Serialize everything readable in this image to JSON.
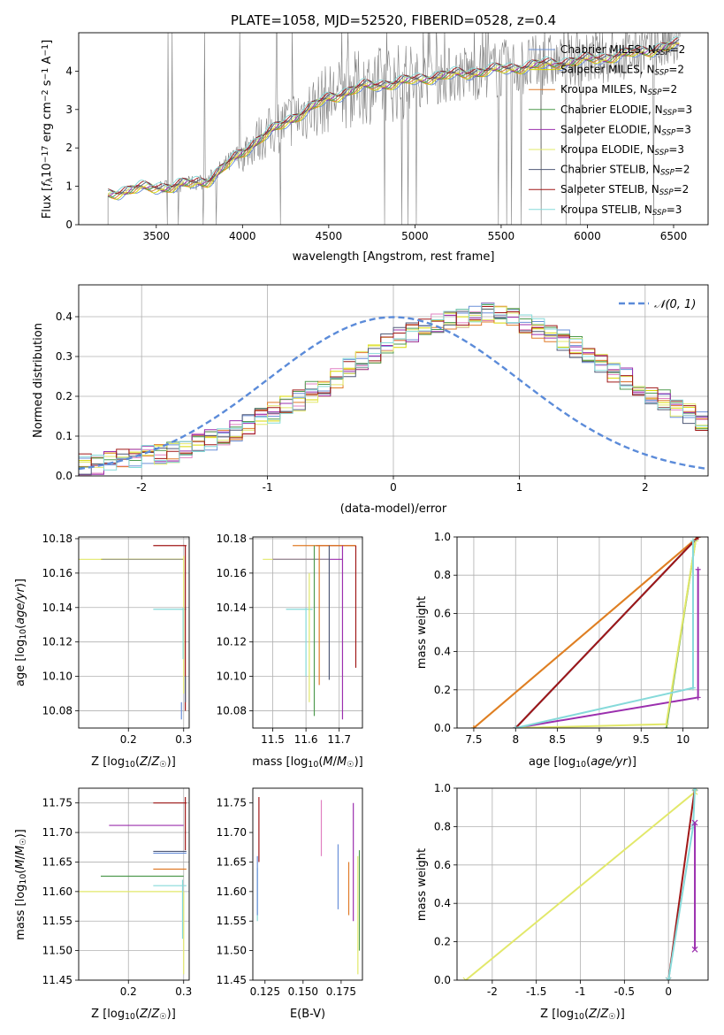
{
  "figure": {
    "title": "PLATE=1058, MJD=52520, FIBERID=0528, z=0.4"
  },
  "colors": {
    "Chabrier MILES": "#6a8fd8",
    "Salpeter MILES": "#d9d900",
    "Kroupa MILES": "#e07b28",
    "Chabrier ELODIE": "#4f9a4f",
    "Salpeter ELODIE": "#9b2fae",
    "Kroupa ELODIE": "#e2e86a",
    "Chabrier STELIB": "#505a78",
    "Salpeter STELIB": "#a01818",
    "Kroupa STELIB": "#86dada",
    "pink": "#e080c0",
    "spectrum": "#808080",
    "normal": "#5b8bd9"
  },
  "chart_data": [
    {
      "id": "spectrum",
      "type": "line",
      "title": "PLATE=1058, MJD=52520, FIBERID=0528, z=0.4",
      "xlabel": "wavelength [Angstrom, rest frame]",
      "ylabel_parts": [
        "Flux [",
        "f",
        "λ",
        "10",
        "−17",
        " erg cm",
        "−2",
        " s",
        "−1",
        " A",
        "−1",
        "]"
      ],
      "xlim": [
        3050,
        6700
      ],
      "ylim": [
        0,
        5
      ],
      "xticks": [
        3500,
        4000,
        4500,
        5000,
        5500,
        6000,
        6500
      ],
      "yticks": [
        0,
        1,
        2,
        3,
        4
      ],
      "grid": false,
      "legend_position": "top-right",
      "continuum": [
        [
          3220,
          0.8
        ],
        [
          3400,
          0.95
        ],
        [
          3600,
          1.0
        ],
        [
          3800,
          1.15
        ],
        [
          3950,
          1.7
        ],
        [
          4100,
          2.25
        ],
        [
          4300,
          2.8
        ],
        [
          4500,
          3.3
        ],
        [
          4700,
          3.6
        ],
        [
          4900,
          3.7
        ],
        [
          5100,
          3.85
        ],
        [
          5300,
          3.95
        ],
        [
          5500,
          4.05
        ],
        [
          5700,
          4.15
        ],
        [
          5900,
          4.25
        ],
        [
          6100,
          4.35
        ],
        [
          6300,
          4.5
        ],
        [
          6530,
          4.7
        ]
      ],
      "series": [
        {
          "name": "Chabrier MILES",
          "nssp": "2"
        },
        {
          "name": "Salpeter MILES",
          "nssp": "2"
        },
        {
          "name": "Kroupa MILES",
          "nssp": "2"
        },
        {
          "name": "Chabrier ELODIE",
          "nssp": "3"
        },
        {
          "name": "Salpeter ELODIE",
          "nssp": "3"
        },
        {
          "name": "Kroupa ELODIE",
          "nssp": "3"
        },
        {
          "name": "Chabrier STELIB",
          "nssp": "2"
        },
        {
          "name": "Salpeter STELIB",
          "nssp": "2"
        },
        {
          "name": "Kroupa STELIB",
          "nssp": "3"
        }
      ]
    },
    {
      "id": "residuals",
      "type": "line",
      "xlabel": "(data-model)/error",
      "ylabel": "Normed distribution",
      "xlim": [
        -2.5,
        2.5
      ],
      "ylim": [
        0,
        0.48
      ],
      "xticks": [
        -2,
        -1,
        0,
        1,
        2
      ],
      "yticks": [
        0.0,
        0.1,
        0.2,
        0.3,
        0.4
      ],
      "grid": true,
      "legend_position": "top-right",
      "legend_label": "𝒩(0, 1)",
      "bin_width": 0.1,
      "bin_start": -2.5,
      "histogram_mean": [
        0.03,
        0.03,
        0.035,
        0.04,
        0.045,
        0.05,
        0.055,
        0.06,
        0.07,
        0.08,
        0.09,
        0.1,
        0.115,
        0.13,
        0.145,
        0.16,
        0.175,
        0.19,
        0.21,
        0.225,
        0.245,
        0.27,
        0.29,
        0.31,
        0.33,
        0.35,
        0.36,
        0.375,
        0.385,
        0.39,
        0.4,
        0.405,
        0.41,
        0.405,
        0.395,
        0.385,
        0.37,
        0.355,
        0.34,
        0.325,
        0.3,
        0.28,
        0.26,
        0.245,
        0.225,
        0.205,
        0.19,
        0.17,
        0.155,
        0.14
      ]
    },
    {
      "id": "age-vs-Z",
      "type": "line",
      "xlabel": "Z [log10(Z/Z☉)]",
      "ylabel": "age  [log10(age/yr)]",
      "xlim": [
        0.11,
        0.31
      ],
      "ylim": [
        10.07,
        10.181
      ],
      "xticks": [
        0.2,
        0.3
      ],
      "yticks": [
        10.08,
        10.1,
        10.12,
        10.14,
        10.16,
        10.18
      ],
      "grid": true
    },
    {
      "id": "age-vs-mass",
      "type": "line",
      "xlabel": "mass [log10(M/M☉)]",
      "xlim": [
        11.44,
        11.77
      ],
      "ylim": [
        10.07,
        10.181
      ],
      "xticks": [
        11.5,
        11.6,
        11.7
      ],
      "yticks": [
        10.08,
        10.1,
        10.12,
        10.14,
        10.16,
        10.18
      ],
      "grid": true
    },
    {
      "id": "weight-vs-age",
      "type": "line",
      "xlabel": "age  [log10(age/yr)]",
      "ylabel": "mass weight",
      "xlim": [
        7.3,
        10.3
      ],
      "ylim": [
        0,
        1
      ],
      "xticks": [
        7.5,
        8.0,
        8.5,
        9.0,
        9.5,
        10.0
      ],
      "yticks": [
        0.0,
        0.2,
        0.4,
        0.6,
        0.8,
        1.0
      ],
      "grid": true,
      "series": [
        {
          "name": "Chabrier MILES",
          "x": [
            8.0,
            10.18
          ],
          "y": [
            0.0,
            1.0
          ]
        },
        {
          "name": "Salpeter MILES",
          "x": [
            7.5,
            10.18
          ],
          "y": [
            0.0,
            1.0
          ]
        },
        {
          "name": "Kroupa MILES",
          "x": [
            7.5,
            10.18
          ],
          "y": [
            0.0,
            1.0
          ]
        },
        {
          "name": "Chabrier ELODIE",
          "x": [
            9.8,
            10.15
          ],
          "y": [
            0.0,
            0.98
          ]
        },
        {
          "name": "Salpeter ELODIE",
          "x": [
            8.0,
            10.18,
            10.18
          ],
          "y": [
            0.0,
            0.16,
            0.83
          ]
        },
        {
          "name": "Kroupa ELODIE",
          "x": [
            8.0,
            9.8,
            10.15
          ],
          "y": [
            0.0,
            0.02,
            0.98
          ]
        },
        {
          "name": "Chabrier STELIB",
          "x": [
            8.0,
            10.18
          ],
          "y": [
            0.0,
            1.0
          ]
        },
        {
          "name": "Salpeter STELIB",
          "x": [
            8.0,
            10.18
          ],
          "y": [
            0.0,
            1.0
          ]
        },
        {
          "name": "Kroupa STELIB",
          "x": [
            8.0,
            10.12,
            10.12
          ],
          "y": [
            0.0,
            0.21,
            0.98
          ]
        }
      ]
    },
    {
      "id": "mass-vs-Z",
      "type": "line",
      "xlabel": "Z [log10(Z/Z☉)]",
      "ylabel": "mass [log10(M/M☉)]",
      "xlim": [
        0.11,
        0.31
      ],
      "ylim": [
        11.45,
        11.775
      ],
      "xticks": [
        0.2,
        0.3
      ],
      "yticks": [
        11.45,
        11.5,
        11.55,
        11.6,
        11.65,
        11.7,
        11.75
      ],
      "grid": true
    },
    {
      "id": "mass-vs-ebv",
      "type": "line",
      "xlabel": "E(B-V)",
      "xlim": [
        0.117,
        0.189
      ],
      "ylim": [
        11.45,
        11.775
      ],
      "xticks": [
        0.125,
        0.15,
        0.175
      ],
      "xticklabels": [
        "0.125",
        "0.150",
        "0.175"
      ],
      "yticks": [
        11.45,
        11.5,
        11.55,
        11.6,
        11.65,
        11.7,
        11.75
      ],
      "grid": false
    },
    {
      "id": "weight-vs-Z",
      "type": "line",
      "xlabel": "Z [log10(Z/Z☉)]",
      "ylabel": "mass weight",
      "xlim": [
        -2.4,
        0.45
      ],
      "ylim": [
        0,
        1
      ],
      "xticks": [
        -2.0,
        -1.5,
        -1.0,
        -0.5,
        0.0
      ],
      "yticks": [
        0.0,
        0.2,
        0.4,
        0.6,
        0.8,
        1.0
      ],
      "grid": true,
      "series": [
        {
          "name": "Kroupa ELODIE",
          "x": [
            -2.3,
            0.3
          ],
          "y": [
            0.0,
            0.98
          ]
        },
        {
          "name": "Salpeter STELIB",
          "x": [
            0.0,
            0.3
          ],
          "y": [
            0.0,
            1.0
          ]
        },
        {
          "name": "Kroupa STELIB",
          "x": [
            0.0,
            0.28,
            0.3
          ],
          "y": [
            0.0,
            0.8,
            1.0
          ]
        },
        {
          "name": "Salpeter ELODIE",
          "x": [
            0.3,
            0.3
          ],
          "y": [
            0.16,
            0.82
          ]
        }
      ]
    }
  ]
}
